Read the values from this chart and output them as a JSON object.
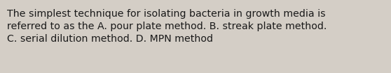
{
  "text": "The simplest technique for isolating bacteria in growth media is\nreferred to as the A. pour plate method. B. streak plate method.\nC. serial dilution method. D. MPN method",
  "background_color": "#d4cec6",
  "text_color": "#1a1a1a",
  "font_size": 10.2,
  "fig_width": 5.58,
  "fig_height": 1.05,
  "dpi": 100
}
